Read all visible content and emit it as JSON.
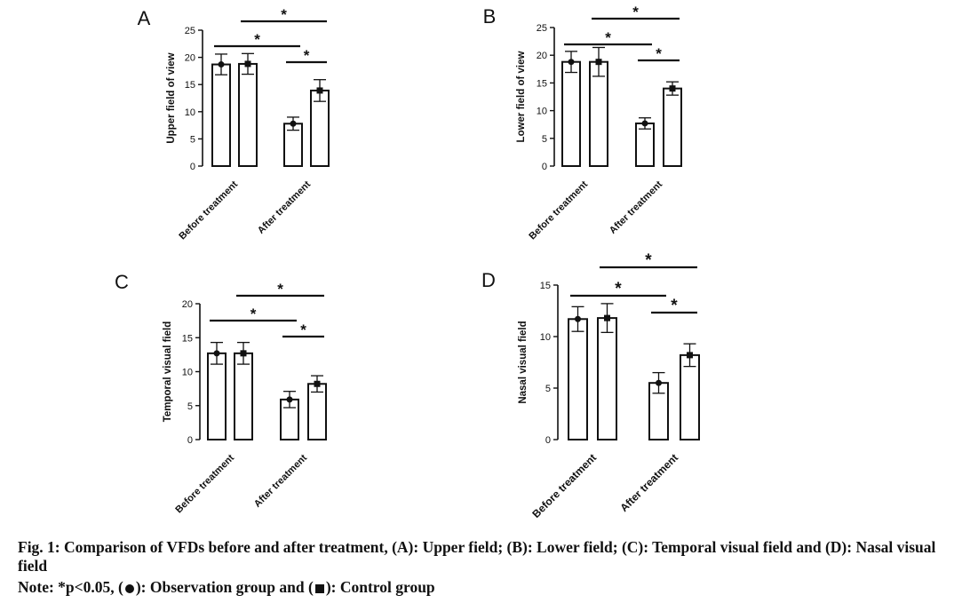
{
  "colors": {
    "ink": "#111111",
    "bar_fill": "#ffffff"
  },
  "chart_data": [
    {
      "panel": "A",
      "type": "bar",
      "categories": [
        "Before treatment",
        "After treatment"
      ],
      "ylabel": "Upper field of view",
      "ylim": [
        0,
        25
      ],
      "yticks": [
        "0",
        "5",
        "10",
        "15",
        "20",
        "25"
      ],
      "series": [
        {
          "marker": "circle",
          "values": [
            18.7,
            7.8
          ],
          "errors": [
            1.9,
            1.2
          ]
        },
        {
          "marker": "square",
          "values": [
            18.8,
            13.9
          ],
          "errors": [
            1.9,
            2.0
          ]
        }
      ],
      "significance": [
        {
          "label": "*",
          "bars": [
            0,
            2
          ]
        },
        {
          "label": "*",
          "bars": [
            1,
            3
          ]
        },
        {
          "label": "*",
          "bars": [
            2,
            3
          ]
        }
      ]
    },
    {
      "panel": "B",
      "type": "bar",
      "categories": [
        "Before treatment",
        "After treatment"
      ],
      "ylabel": "Lower field of view",
      "ylim": [
        0,
        25
      ],
      "yticks": [
        "0",
        "5",
        "10",
        "15",
        "20",
        "25"
      ],
      "series": [
        {
          "marker": "circle",
          "values": [
            18.8,
            7.7
          ],
          "errors": [
            1.9,
            1.0
          ]
        },
        {
          "marker": "square",
          "values": [
            18.8,
            14.0
          ],
          "errors": [
            2.6,
            1.2
          ]
        }
      ],
      "significance": [
        {
          "label": "*",
          "bars": [
            0,
            2
          ]
        },
        {
          "label": "*",
          "bars": [
            1,
            3
          ]
        },
        {
          "label": "*",
          "bars": [
            2,
            3
          ]
        }
      ]
    },
    {
      "panel": "C",
      "type": "bar",
      "categories": [
        "Before treatment",
        "After treatment"
      ],
      "ylabel": "Temporal visual field",
      "ylim": [
        0,
        20
      ],
      "yticks": [
        "0",
        "5",
        "10",
        "15",
        "20"
      ],
      "series": [
        {
          "marker": "circle",
          "values": [
            12.7,
            5.9
          ],
          "errors": [
            1.6,
            1.2
          ]
        },
        {
          "marker": "square",
          "values": [
            12.7,
            8.2
          ],
          "errors": [
            1.6,
            1.2
          ]
        }
      ],
      "significance": [
        {
          "label": "*",
          "bars": [
            0,
            2
          ]
        },
        {
          "label": "*",
          "bars": [
            1,
            3
          ]
        },
        {
          "label": "*",
          "bars": [
            2,
            3
          ]
        }
      ]
    },
    {
      "panel": "D",
      "type": "bar",
      "categories": [
        "Before treatment",
        "After treatment"
      ],
      "ylabel": "Nasal visual field",
      "ylim": [
        0,
        15
      ],
      "yticks": [
        "0",
        "5",
        "10",
        "15"
      ],
      "series": [
        {
          "marker": "circle",
          "values": [
            11.7,
            5.5
          ],
          "errors": [
            1.2,
            1.0
          ]
        },
        {
          "marker": "square",
          "values": [
            11.8,
            8.2
          ],
          "errors": [
            1.4,
            1.1
          ]
        }
      ],
      "significance": [
        {
          "label": "*",
          "bars": [
            0,
            2
          ]
        },
        {
          "label": "*",
          "bars": [
            1,
            3
          ]
        },
        {
          "label": "*",
          "bars": [
            2,
            3
          ]
        }
      ]
    }
  ],
  "caption": {
    "main": "Fig. 1: Comparison of VFDs before and after treatment, (A): Upper field; (B): Lower field; (C): Temporal visual field and (D): Nasal visual field",
    "note_prefix": "Note: *p<0.05, (",
    "note_mid": "): Observation group and (",
    "note_end": "): Control group"
  }
}
